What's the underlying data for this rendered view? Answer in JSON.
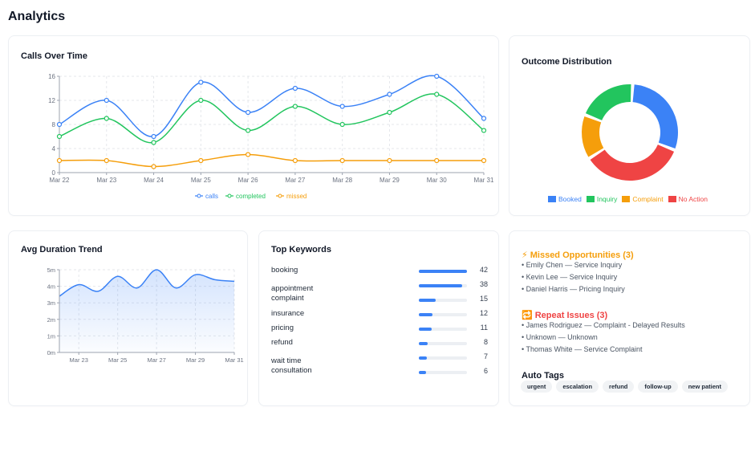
{
  "page": {
    "title": "Analytics"
  },
  "colors": {
    "calls": "#3b82f6",
    "completed": "#22c55e",
    "missed": "#f59e0b",
    "booked": "#3b82f6",
    "inquiry": "#22c55e",
    "complaint": "#f59e0b",
    "no_action": "#ef4444",
    "missed_heading": "#f59e0b",
    "repeat_heading": "#ef4444"
  },
  "calls_chart": {
    "title": "Calls Over Time",
    "chart_data": {
      "type": "line",
      "categories": [
        "Mar 22",
        "Mar 23",
        "Mar 24",
        "Mar 25",
        "Mar 26",
        "Mar 27",
        "Mar 28",
        "Mar 29",
        "Mar 30",
        "Mar 31"
      ],
      "ylim": [
        0,
        16
      ],
      "yticks": [
        0,
        4,
        8,
        12,
        16
      ],
      "grid": true,
      "legend": "bottom",
      "series": [
        {
          "name": "calls",
          "values": [
            8,
            12,
            6,
            15,
            10,
            14,
            11,
            13,
            16,
            9
          ]
        },
        {
          "name": "completed",
          "values": [
            6,
            9,
            5,
            12,
            7,
            11,
            8,
            10,
            13,
            7
          ]
        },
        {
          "name": "missed",
          "values": [
            2,
            2,
            1,
            2,
            3,
            2,
            2,
            2,
            2,
            2
          ]
        }
      ]
    }
  },
  "outcome_chart": {
    "title": "Outcome Distribution",
    "chart_data": {
      "type": "pie",
      "categories": [
        "Booked",
        "Inquiry",
        "Complaint",
        "No Action"
      ],
      "values": [
        30,
        20,
        15,
        35
      ],
      "legend": "bottom"
    }
  },
  "duration_chart": {
    "title": "Avg Duration Trend",
    "chart_data": {
      "type": "area",
      "x": [
        "Mar 22",
        "Mar 23",
        "Mar 24",
        "Mar 25",
        "Mar 26",
        "Mar 27",
        "Mar 28",
        "Mar 29",
        "Mar 30",
        "Mar 31"
      ],
      "xticks": [
        "Mar 23",
        "Mar 25",
        "Mar 27",
        "Mar 29",
        "Mar 31"
      ],
      "yticks": [
        "0m",
        "1m",
        "2m",
        "3m",
        "4m",
        "5m"
      ],
      "ylim": [
        0,
        5
      ],
      "values": [
        3.4,
        4.1,
        3.7,
        4.6,
        3.9,
        5.0,
        3.9,
        4.7,
        4.4,
        4.3
      ],
      "grid": true
    }
  },
  "keywords": {
    "title": "Top Keywords",
    "max": 42,
    "items": [
      {
        "label": "booking",
        "count": 42
      },
      {
        "label": "appointment",
        "count": 38
      },
      {
        "label": "complaint",
        "count": 15
      },
      {
        "label": "insurance",
        "count": 12
      },
      {
        "label": "pricing",
        "count": 11
      },
      {
        "label": "refund",
        "count": 8
      },
      {
        "label": "wait time",
        "count": 7
      },
      {
        "label": "consultation",
        "count": 6
      }
    ]
  },
  "insights": {
    "missed": {
      "icon": "⚡",
      "title": "Missed Opportunities (3)",
      "items": [
        "Emily Chen — Service Inquiry",
        "Kevin Lee — Service Inquiry",
        "Daniel Harris — Pricing Inquiry"
      ]
    },
    "repeat": {
      "icon": "🔁",
      "title": "Repeat Issues (3)",
      "items": [
        "James Rodriguez — Complaint - Delayed Results",
        "Unknown — Unknown",
        "Thomas White — Service Complaint"
      ]
    },
    "tags_title": "Auto Tags",
    "tags": [
      "urgent",
      "escalation",
      "refund",
      "follow-up",
      "new patient"
    ]
  }
}
